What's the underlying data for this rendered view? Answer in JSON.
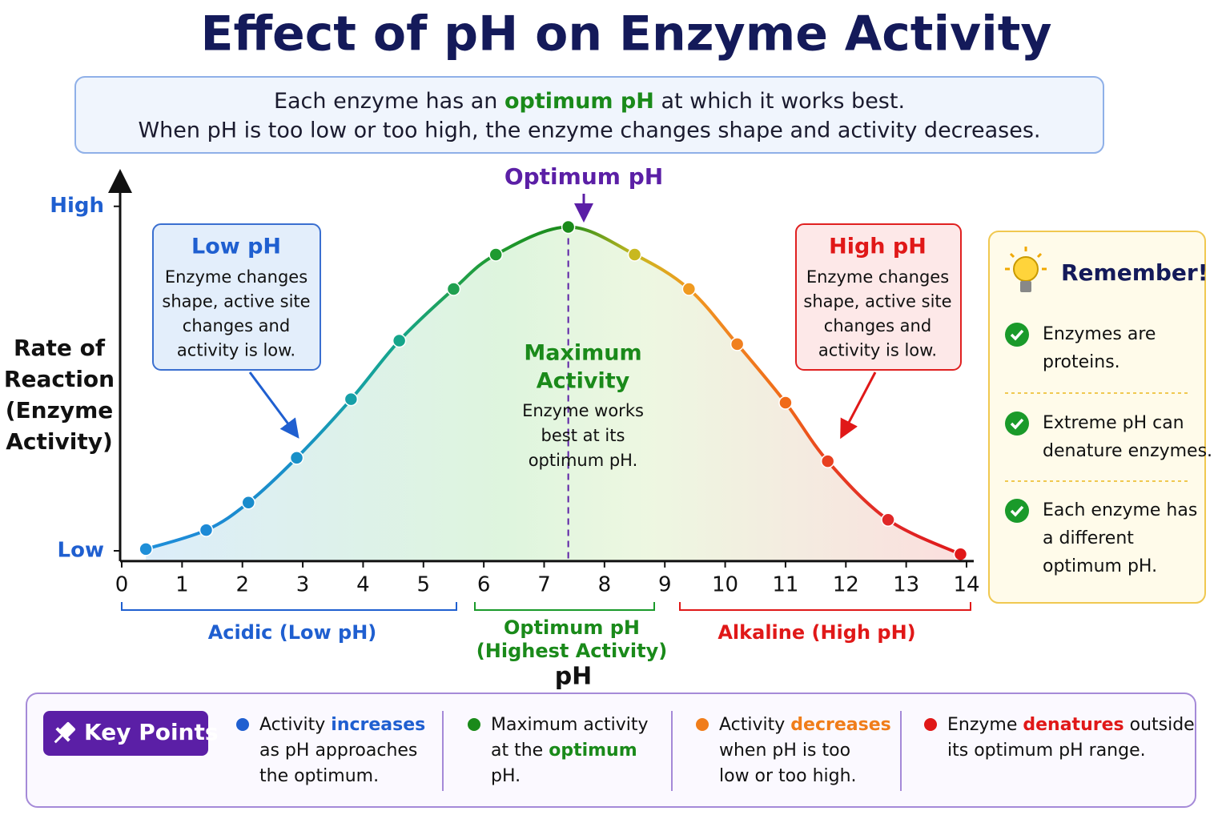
{
  "title": "Effect of pH on Enzyme Activity",
  "intro": {
    "line1": [
      "Each enzyme has an ",
      "optimum pH",
      " at which it works best."
    ],
    "line2": "When pH is too low or too high, the enzyme changes shape and activity decreases."
  },
  "chart_data": {
    "type": "line",
    "x": [
      0.4,
      1.4,
      2.1,
      2.9,
      3.8,
      4.6,
      5.5,
      6.2,
      7.4,
      8.5,
      9.4,
      10.2,
      11.0,
      11.7,
      12.7,
      13.9
    ],
    "values": [
      0.5,
      6,
      14,
      27,
      44,
      61,
      76,
      86,
      94,
      86,
      76,
      60,
      43,
      26,
      9,
      -1
    ],
    "point_colors": [
      "#1f8fd8",
      "#1d8ad6",
      "#1a8ccc",
      "#1990c8",
      "#17a0a8",
      "#15a58a",
      "#20a050",
      "#1f9a30",
      "#1a8a1a",
      "#c8b820",
      "#f09a20",
      "#f08020",
      "#f06a18",
      "#e84020",
      "#e02828",
      "#e01818"
    ],
    "xlim": [
      0,
      14
    ],
    "xticks": [
      0,
      1,
      2,
      3,
      4,
      5,
      6,
      7,
      8,
      9,
      10,
      11,
      12,
      13,
      14
    ],
    "ylim": [
      -3,
      109
    ],
    "yticks": [
      {
        "value": 0,
        "label": "Low"
      },
      {
        "value": 100,
        "label": "High"
      }
    ],
    "xlabel": "pH",
    "ylabel": [
      "Rate of",
      "Reaction",
      "(Enzyme",
      "Activity)"
    ],
    "annotations": {
      "optimum": "Optimum pH",
      "max_title": [
        "Maximum",
        "Activity"
      ],
      "max_text": [
        "Enzyme works",
        "best at its",
        "optimum pH."
      ],
      "low": {
        "title": "Low pH",
        "lines": [
          "Enzyme changes",
          "shape, active site",
          "changes and",
          "activity is low."
        ]
      },
      "high": {
        "title": "High pH",
        "lines": [
          "Enzyme changes",
          "shape, active site",
          "changes and",
          "activity is low."
        ]
      }
    },
    "regions": [
      {
        "label": [
          "Acidic (Low pH)"
        ]
      },
      {
        "label": [
          "Optimum pH",
          "(Highest Activity)"
        ]
      },
      {
        "label": [
          "Alkaline (High pH)"
        ]
      }
    ]
  },
  "remember": {
    "title": "Remember!",
    "items": [
      [
        "Enzymes are",
        "proteins."
      ],
      [
        "Extreme pH can",
        "denature enzymes."
      ],
      [
        "Each enzyme has",
        "a different",
        "optimum pH."
      ]
    ]
  },
  "key_points": {
    "label": "Key Points",
    "items": [
      {
        "color": "#1f5fd0",
        "lines": [
          [
            "Activity ",
            "increases"
          ],
          [
            "as pH approaches"
          ],
          [
            "the optimum."
          ]
        ]
      },
      {
        "color": "#1a8a1a",
        "lines": [
          [
            "Maximum activity"
          ],
          [
            "at the ",
            "optimum"
          ],
          [
            "pH."
          ]
        ]
      },
      {
        "color": "#f07d1a",
        "lines": [
          [
            "Activity ",
            "decreases"
          ],
          [
            "when pH is too"
          ],
          [
            "low or too high."
          ]
        ]
      },
      {
        "color": "#e01818",
        "lines": [
          [
            "Enzyme ",
            "denatures",
            " outside"
          ],
          [
            "its optimum pH range."
          ]
        ]
      }
    ]
  }
}
